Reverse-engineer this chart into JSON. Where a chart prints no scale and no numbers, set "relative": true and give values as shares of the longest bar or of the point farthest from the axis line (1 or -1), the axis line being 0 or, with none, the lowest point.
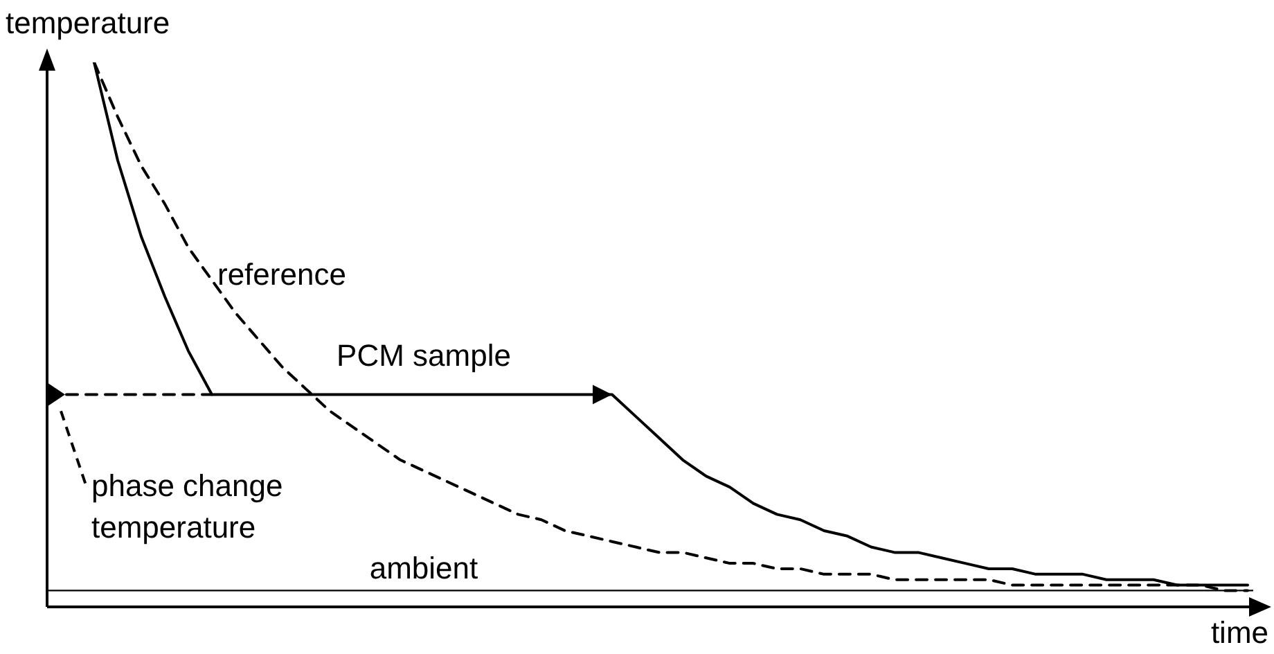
{
  "chart_data": {
    "type": "line",
    "relative": true,
    "xlabel": "time",
    "ylabel": "temperature",
    "categories": [
      null,
      null,
      null,
      null,
      null,
      null,
      null,
      null,
      null,
      null,
      null,
      null,
      null,
      null,
      null,
      null,
      null,
      null,
      null,
      null,
      null,
      null,
      null,
      null,
      null,
      null,
      null,
      null,
      null,
      null,
      null,
      null,
      null,
      null,
      null,
      null,
      null,
      null,
      null,
      null,
      null,
      null,
      null,
      null,
      null,
      null,
      null,
      null,
      null,
      null,
      null,
      null
    ],
    "series": [
      {
        "name": "reference",
        "color": "#000000",
        "line_style": "dashed",
        "values": [
          null,
          null,
          1.0,
          0.9,
          0.81,
          0.74,
          0.66,
          0.6,
          0.54,
          0.49,
          0.44,
          0.4,
          0.36,
          0.33,
          0.3,
          0.27,
          0.25,
          0.23,
          0.21,
          0.19,
          0.17,
          0.16,
          0.14,
          0.13,
          0.12,
          0.11,
          0.1,
          0.1,
          0.09,
          0.08,
          0.08,
          0.07,
          0.07,
          0.06,
          0.06,
          0.06,
          0.05,
          0.05,
          0.05,
          0.05,
          0.05,
          0.04,
          0.04,
          0.04,
          0.04,
          0.04,
          0.04,
          0.04,
          0.04,
          0.04,
          0.03,
          0.03
        ]
      },
      {
        "name": "PCM sample",
        "color": "#000000",
        "line_style": "solid",
        "values": [
          null,
          null,
          1.0,
          0.82,
          0.68,
          0.57,
          0.47,
          0.39,
          0.39,
          0.39,
          0.39,
          0.39,
          0.39,
          0.39,
          0.39,
          0.39,
          0.39,
          0.39,
          0.39,
          0.39,
          0.39,
          0.39,
          0.39,
          0.39,
          0.39,
          0.35,
          0.31,
          0.27,
          0.24,
          0.22,
          0.19,
          0.17,
          0.16,
          0.14,
          0.13,
          0.11,
          0.1,
          0.1,
          0.09,
          0.08,
          0.07,
          0.07,
          0.06,
          0.06,
          0.06,
          0.05,
          0.05,
          0.05,
          0.04,
          0.04,
          0.04,
          0.04
        ]
      },
      {
        "color": "#000000",
        "line_style": "dashed",
        "values": [
          0.39,
          0.39,
          0.39,
          0.39,
          0.39,
          0.39,
          0.39,
          0.39,
          null,
          null,
          null,
          null,
          null,
          null,
          null,
          null,
          null,
          null,
          null,
          null,
          null,
          null,
          null,
          null,
          null,
          null,
          null,
          null,
          null,
          null,
          null,
          null,
          null,
          null,
          null,
          null,
          null,
          null,
          null,
          null,
          null,
          null,
          null,
          null,
          null,
          null,
          null,
          null,
          null,
          null,
          null,
          null
        ]
      }
    ],
    "ref_lines": [
      {
        "axis": "y",
        "value": 0.03,
        "label": "ambient",
        "color": "#000000",
        "line_style": "solid"
      }
    ],
    "annotations": [
      "phase change temperature"
    ],
    "legend": false,
    "marker": "none"
  }
}
